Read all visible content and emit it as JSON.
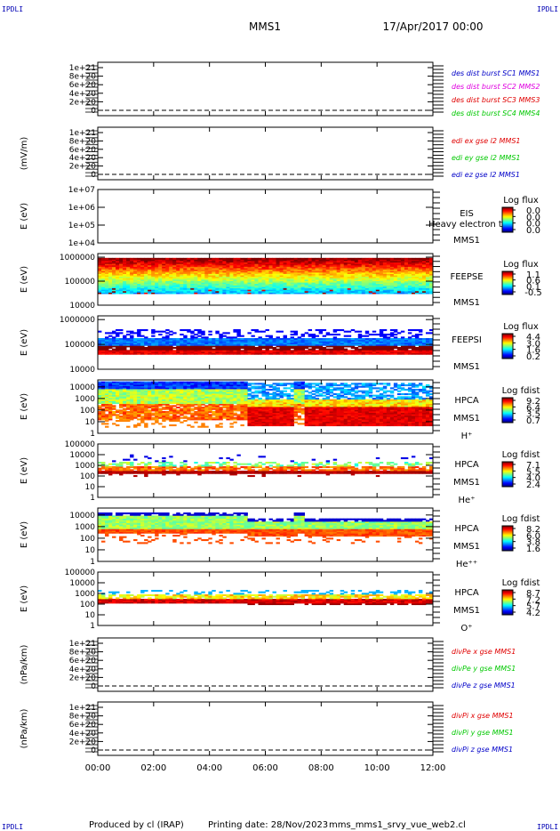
{
  "corner_labels": {
    "tl": "IPDLI",
    "tr": "IPDLI",
    "bl": "IPDLI",
    "br": "IPDLI"
  },
  "header": {
    "title": "MMS1",
    "date": "17/Apr/2017 00:00"
  },
  "footer": {
    "producer": "Produced by cl (IRAP)",
    "printing": "Printing date: 28/Nov/2023",
    "file": "mms_mms1_srvy_vue_web2.cl"
  },
  "colors": {
    "black": "#000000",
    "blue": "#0000c8",
    "magenta": "#e000e0",
    "red": "#e00000",
    "green": "#00c800",
    "legend_blue": "#0000b4"
  },
  "chart_data": {
    "type": "heatmap",
    "x_ticks": [
      "00:00",
      "02:00",
      "04:00",
      "06:00",
      "08:00",
      "10:00",
      "12:00"
    ],
    "x_range_hours": [
      0,
      12
    ],
    "panels": [
      {
        "id": "des-dist",
        "kind": "line",
        "ylabel": "",
        "yticks": [
          "0",
          "2e+20",
          "4e+20",
          "6e+20",
          "8e+20",
          "1e+21"
        ],
        "ylim": [
          0,
          1e+21
        ],
        "legend": [
          {
            "text": "des dist burst SC1 MMS1",
            "color": "#0000c8"
          },
          {
            "text": "des dist burst SC2 MMS2",
            "color": "#e000e0"
          },
          {
            "text": "des dist burst SC3 MMS3",
            "color": "#e00000"
          },
          {
            "text": "des dist burst SC4 MMS4",
            "color": "#00c800"
          }
        ]
      },
      {
        "id": "edi-e",
        "kind": "line",
        "ylabel": "(mV/m)",
        "yticks": [
          "0",
          "2e+20",
          "4e+20",
          "6e+20",
          "8e+20",
          "1e+21"
        ],
        "ylim": [
          0,
          1e+21
        ],
        "legend": [
          {
            "text": "edi ex gse l2 MMS1",
            "color": "#e00000"
          },
          {
            "text": "edi ey gse l2 MMS1",
            "color": "#00c800"
          },
          {
            "text": "edi ez gse l2 MMS1",
            "color": "#0000c8"
          }
        ]
      },
      {
        "id": "eis",
        "kind": "spec",
        "ylabel": "E (eV)",
        "yticks": [
          "1e+04",
          "1e+05",
          "1e+06",
          "1e+07"
        ],
        "log_min": 4,
        "log_max": 7,
        "labels": [
          "EIS",
          "MMS1"
        ],
        "overflow_text": "Heavy electron to",
        "cb_title": "Log flux",
        "cb_ticks": [
          "0.0",
          "0.0",
          "0.0",
          "0.0"
        ],
        "pattern": "empty"
      },
      {
        "id": "feepse",
        "kind": "spec",
        "ylabel": "E (eV)",
        "yticks": [
          "10000",
          "100000",
          "1000000"
        ],
        "log_min": 4,
        "log_max": 6.15,
        "labels": [
          "FEEPSE",
          "MMS1"
        ],
        "cb_title": "Log flux",
        "cb_ticks": [
          "1.1",
          "0.6",
          "0.1",
          "-0.5"
        ],
        "pattern": "feepse"
      },
      {
        "id": "feepsi",
        "kind": "spec",
        "ylabel": "E (eV)",
        "yticks": [
          "10000",
          "100000",
          "1000000"
        ],
        "log_min": 4,
        "log_max": 6.15,
        "labels": [
          "FEEPSI",
          "MMS1"
        ],
        "cb_title": "Log flux",
        "cb_ticks": [
          "4.4",
          "3.0",
          "1.6",
          "0.2"
        ],
        "pattern": "feepsi"
      },
      {
        "id": "hpca-h",
        "kind": "spec",
        "ylabel": "E (eV)",
        "yticks": [
          "1",
          "10",
          "100",
          "1000",
          "10000"
        ],
        "log_min": 0,
        "log_max": 4.6,
        "labels": [
          "HPCA",
          "MMS1",
          "H⁺"
        ],
        "cb_title": "Log fdist",
        "cb_ticks": [
          "9.2",
          "6.4",
          "3.5",
          "0.7"
        ],
        "pattern": "h"
      },
      {
        "id": "hpca-he",
        "kind": "spec",
        "ylabel": "E (eV)",
        "yticks": [
          "1",
          "10",
          "100",
          "1000",
          "10000",
          "100000"
        ],
        "log_min": 0,
        "log_max": 5,
        "labels": [
          "HPCA",
          "MMS1",
          "He⁺"
        ],
        "cb_title": "Log fdist",
        "cb_ticks": [
          "7.1",
          "5.5",
          "4.0",
          "2.4"
        ],
        "pattern": "he"
      },
      {
        "id": "hpca-he2",
        "kind": "spec",
        "ylabel": "E (eV)",
        "yticks": [
          "1",
          "10",
          "100",
          "1000",
          "10000"
        ],
        "log_min": 0,
        "log_max": 4.6,
        "labels": [
          "HPCA",
          "MMS1",
          "He⁺⁺"
        ],
        "cb_title": "Log fdist",
        "cb_ticks": [
          "8.2",
          "6.0",
          "3.8",
          "1.6"
        ],
        "pattern": "he2"
      },
      {
        "id": "hpca-o",
        "kind": "spec",
        "ylabel": "E (eV)",
        "yticks": [
          "1",
          "10",
          "100",
          "1000",
          "10000",
          "100000"
        ],
        "log_min": 0,
        "log_max": 5,
        "labels": [
          "HPCA",
          "MMS1",
          "O⁺"
        ],
        "cb_title": "Log fdist",
        "cb_ticks": [
          "8.7",
          "7.2",
          "5.7",
          "4.2"
        ],
        "pattern": "o"
      },
      {
        "id": "divpe",
        "kind": "line",
        "ylabel": "(nPa/km)",
        "yticks": [
          "0",
          "2e+20",
          "4e+20",
          "6e+20",
          "8e+20",
          "1e+21"
        ],
        "ylim": [
          0,
          1e+21
        ],
        "legend": [
          {
            "text": "divPe x gse MMS1",
            "color": "#e00000"
          },
          {
            "text": "divPe y gse MMS1",
            "color": "#00c800"
          },
          {
            "text": "divPe z gse MMS1",
            "color": "#0000c8"
          }
        ]
      },
      {
        "id": "divpi",
        "kind": "line",
        "ylabel": "(nPa/km)",
        "yticks": [
          "0",
          "2e+20",
          "4e+20",
          "6e+20",
          "8e+20",
          "1e+21"
        ],
        "ylim": [
          0,
          1e+21
        ],
        "legend": [
          {
            "text": "divPi x gse MMS1",
            "color": "#e00000"
          },
          {
            "text": "divPi y gse MMS1",
            "color": "#00c800"
          },
          {
            "text": "divPi z gse MMS1",
            "color": "#0000c8"
          }
        ]
      }
    ]
  }
}
